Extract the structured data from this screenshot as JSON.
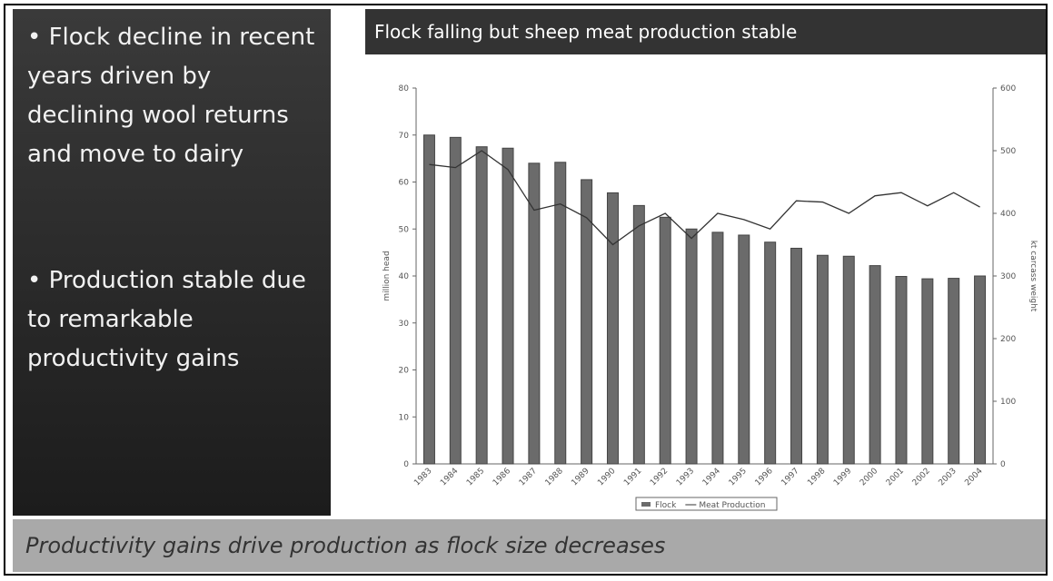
{
  "slide": {
    "bullets": [
      "• Flock decline in recent years driven by declining wool returns and move to dairy",
      "• Production stable due to remarkable productivity gains"
    ],
    "footer": "Productivity gains drive production as flock size decreases"
  },
  "chart_data": {
    "type": "bar",
    "title": "Flock falling but sheep meat production stable",
    "categories": [
      "1983",
      "1984",
      "1985",
      "1986",
      "1987",
      "1988",
      "1989",
      "1990",
      "1991",
      "1992",
      "1993",
      "1994",
      "1995",
      "1996",
      "1997",
      "1998",
      "1999",
      "2000",
      "2001",
      "2002",
      "2003",
      "2004"
    ],
    "series": [
      {
        "name": "Flock",
        "type": "bar",
        "color": "#6b6b6b",
        "values": [
          70,
          69.5,
          67.5,
          67.2,
          64,
          64.2,
          60.5,
          57.7,
          55,
          52.5,
          50,
          49.3,
          48.7,
          47.2,
          45.9,
          44.4,
          44.2,
          42.2,
          39.9,
          39.4,
          39.5,
          40
        ]
      },
      {
        "name": "Meat Production",
        "type": "line",
        "axis": "y2",
        "color": "#333333",
        "values": [
          478,
          473,
          500,
          470,
          405,
          415,
          393,
          350,
          380,
          400,
          360,
          400,
          390,
          375,
          420,
          418,
          400,
          428,
          433,
          412,
          433,
          410
        ]
      }
    ],
    "y_label": "million head",
    "y2_label": "kt carcass weight",
    "ylim": [
      0,
      80
    ],
    "yticks": [
      0,
      10,
      20,
      30,
      40,
      50,
      60,
      70,
      80
    ],
    "y2lim": [
      0,
      600
    ],
    "y2ticks": [
      0,
      100,
      200,
      300,
      400,
      500,
      600
    ]
  }
}
